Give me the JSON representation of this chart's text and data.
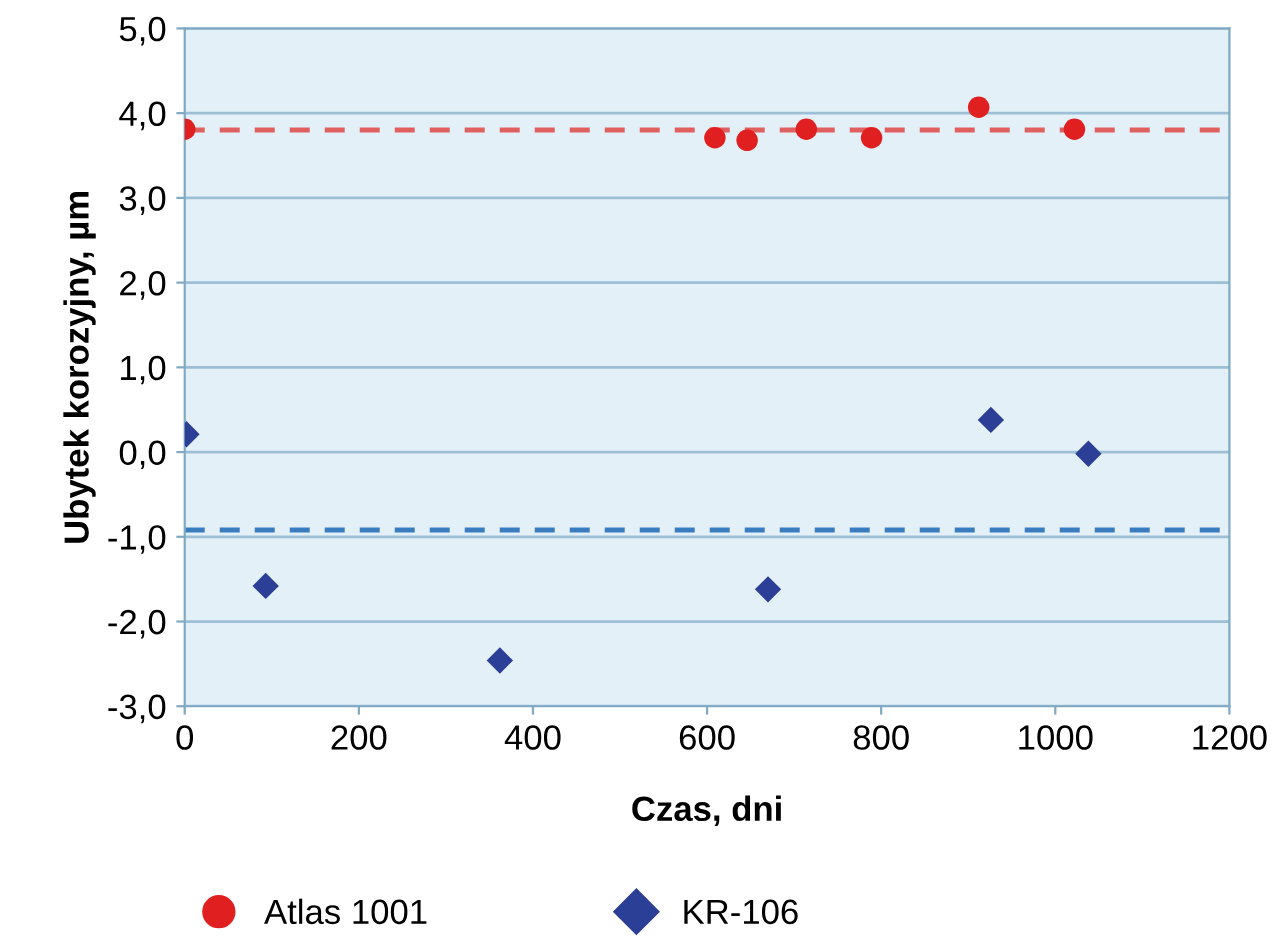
{
  "chart_data": {
    "type": "scatter",
    "xlabel": "Czas, dni",
    "ylabel": "Ubytek korozyjny, µm",
    "series": [
      {
        "name": "Atlas 1001",
        "color": "#e02020",
        "marker": "circle",
        "x": [
          0,
          609,
          646,
          714,
          789,
          912,
          1022
        ],
        "values": [
          3.81,
          3.71,
          3.68,
          3.81,
          3.71,
          4.07,
          3.81
        ]
      },
      {
        "name": "KR-106",
        "color": "#2b3f96",
        "marker": "diamond",
        "x": [
          2,
          93,
          362,
          670,
          926,
          1038
        ],
        "values": [
          0.21,
          -1.58,
          -2.46,
          -1.62,
          0.38,
          -0.02
        ]
      }
    ],
    "ref_lines": [
      {
        "axis": "y",
        "value": 3.8,
        "color": "#e06060",
        "line_style": "dashed"
      },
      {
        "axis": "y",
        "value": -0.92,
        "color": "#3a7cc0",
        "line_style": "dashed"
      }
    ],
    "xlim": [
      0,
      1200
    ],
    "xticks": [
      0,
      200,
      400,
      600,
      800,
      1000,
      1200
    ],
    "ylim": [
      -3,
      5
    ],
    "yticks": [
      {
        "value": -3,
        "label": "-3,0"
      },
      {
        "value": -2,
        "label": "-2,0"
      },
      {
        "value": -1,
        "label": "-1,0"
      },
      {
        "value": 0,
        "label": "0,0"
      },
      {
        "value": 1,
        "label": "1,0"
      },
      {
        "value": 2,
        "label": "2,0"
      },
      {
        "value": 3,
        "label": "3,0"
      },
      {
        "value": 4,
        "label": "4,0"
      },
      {
        "value": 5,
        "label": "5,0"
      }
    ],
    "grid": "y",
    "legend": "bottom"
  }
}
